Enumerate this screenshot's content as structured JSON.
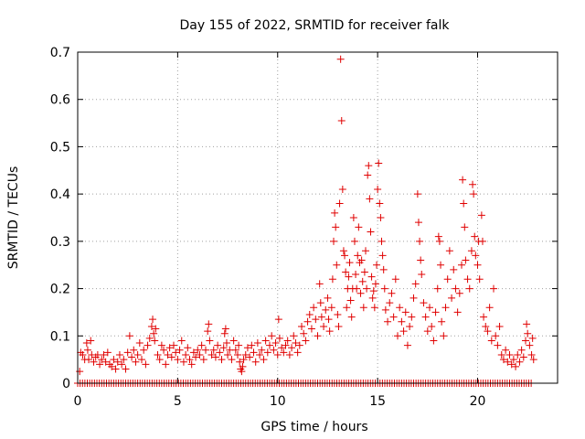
{
  "chart_data": {
    "type": "scatter",
    "title": "Day 155 of 2022, SRMTID for receiver falk",
    "xlabel": "GPS time / hours",
    "ylabel": "SRMTID / TECUs",
    "xlim": [
      0,
      24
    ],
    "ylim": [
      0,
      0.7
    ],
    "x_ticks": [
      "0",
      "5",
      "10",
      "15",
      "20"
    ],
    "x_tick_values": [
      0,
      5,
      10,
      15,
      20
    ],
    "y_ticks": [
      "0",
      "0.1",
      "0.2",
      "0.3",
      "0.4",
      "0.5",
      "0.6",
      "0.7"
    ],
    "y_tick_values": [
      0,
      0.1,
      0.2,
      0.3,
      0.4,
      0.5,
      0.6,
      0.7
    ],
    "grid": true,
    "marker": "+",
    "series_color": "#e00000",
    "series": [
      {
        "name": "SRMTID",
        "points": [
          [
            0.1,
            0.025
          ],
          [
            0.15,
            0.065
          ],
          [
            0.25,
            0.06
          ],
          [
            0.35,
            0.05
          ],
          [
            0.45,
            0.085
          ],
          [
            0.5,
            0.07
          ],
          [
            0.55,
            0.05
          ],
          [
            0.65,
            0.09
          ],
          [
            0.7,
            0.06
          ],
          [
            0.8,
            0.045
          ],
          [
            0.9,
            0.055
          ],
          [
            1.0,
            0.06
          ],
          [
            1.1,
            0.04
          ],
          [
            1.2,
            0.05
          ],
          [
            1.3,
            0.06
          ],
          [
            1.4,
            0.045
          ],
          [
            1.5,
            0.065
          ],
          [
            1.6,
            0.04
          ],
          [
            1.7,
            0.035
          ],
          [
            1.8,
            0.05
          ],
          [
            1.9,
            0.03
          ],
          [
            2.0,
            0.045
          ],
          [
            2.1,
            0.06
          ],
          [
            2.2,
            0.04
          ],
          [
            2.3,
            0.05
          ],
          [
            2.4,
            0.03
          ],
          [
            2.5,
            0.065
          ],
          [
            2.6,
            0.1
          ],
          [
            2.7,
            0.055
          ],
          [
            2.8,
            0.07
          ],
          [
            2.9,
            0.045
          ],
          [
            3.0,
            0.06
          ],
          [
            3.1,
            0.085
          ],
          [
            3.2,
            0.05
          ],
          [
            3.3,
            0.07
          ],
          [
            3.4,
            0.04
          ],
          [
            3.5,
            0.08
          ],
          [
            3.6,
            0.095
          ],
          [
            3.7,
            0.12
          ],
          [
            3.75,
            0.135
          ],
          [
            3.8,
            0.105
          ],
          [
            3.85,
            0.09
          ],
          [
            3.9,
            0.115
          ],
          [
            4.0,
            0.06
          ],
          [
            4.1,
            0.05
          ],
          [
            4.2,
            0.08
          ],
          [
            4.3,
            0.07
          ],
          [
            4.4,
            0.04
          ],
          [
            4.5,
            0.06
          ],
          [
            4.6,
            0.075
          ],
          [
            4.7,
            0.055
          ],
          [
            4.8,
            0.08
          ],
          [
            4.9,
            0.065
          ],
          [
            5.0,
            0.05
          ],
          [
            5.1,
            0.07
          ],
          [
            5.2,
            0.09
          ],
          [
            5.3,
            0.045
          ],
          [
            5.4,
            0.06
          ],
          [
            5.5,
            0.075
          ],
          [
            5.6,
            0.05
          ],
          [
            5.7,
            0.04
          ],
          [
            5.8,
            0.065
          ],
          [
            5.9,
            0.055
          ],
          [
            6.0,
            0.07
          ],
          [
            6.1,
            0.06
          ],
          [
            6.2,
            0.08
          ],
          [
            6.3,
            0.05
          ],
          [
            6.4,
            0.07
          ],
          [
            6.5,
            0.11
          ],
          [
            6.55,
            0.125
          ],
          [
            6.6,
            0.09
          ],
          [
            6.7,
            0.06
          ],
          [
            6.8,
            0.07
          ],
          [
            6.9,
            0.055
          ],
          [
            7.0,
            0.08
          ],
          [
            7.1,
            0.065
          ],
          [
            7.2,
            0.05
          ],
          [
            7.3,
            0.075
          ],
          [
            7.35,
            0.105
          ],
          [
            7.4,
            0.115
          ],
          [
            7.45,
            0.085
          ],
          [
            7.5,
            0.06
          ],
          [
            7.6,
            0.07
          ],
          [
            7.7,
            0.05
          ],
          [
            7.8,
            0.09
          ],
          [
            7.9,
            0.07
          ],
          [
            8.0,
            0.06
          ],
          [
            8.05,
            0.08
          ],
          [
            8.1,
            0.045
          ],
          [
            8.15,
            0.03
          ],
          [
            8.2,
            0.025
          ],
          [
            8.25,
            0.035
          ],
          [
            8.3,
            0.05
          ],
          [
            8.4,
            0.06
          ],
          [
            8.5,
            0.075
          ],
          [
            8.6,
            0.055
          ],
          [
            8.7,
            0.08
          ],
          [
            8.8,
            0.065
          ],
          [
            8.9,
            0.045
          ],
          [
            9.0,
            0.085
          ],
          [
            9.1,
            0.06
          ],
          [
            9.2,
            0.07
          ],
          [
            9.3,
            0.05
          ],
          [
            9.4,
            0.09
          ],
          [
            9.5,
            0.065
          ],
          [
            9.6,
            0.08
          ],
          [
            9.7,
            0.1
          ],
          [
            9.8,
            0.07
          ],
          [
            9.9,
            0.085
          ],
          [
            10.0,
            0.06
          ],
          [
            10.05,
            0.135
          ],
          [
            10.1,
            0.095
          ],
          [
            10.2,
            0.075
          ],
          [
            10.3,
            0.065
          ],
          [
            10.4,
            0.08
          ],
          [
            10.5,
            0.09
          ],
          [
            10.6,
            0.06
          ],
          [
            10.7,
            0.075
          ],
          [
            10.8,
            0.1
          ],
          [
            10.9,
            0.085
          ],
          [
            11.0,
            0.065
          ],
          [
            11.1,
            0.08
          ],
          [
            11.2,
            0.12
          ],
          [
            11.3,
            0.105
          ],
          [
            11.4,
            0.09
          ],
          [
            11.5,
            0.13
          ],
          [
            11.6,
            0.145
          ],
          [
            11.7,
            0.115
          ],
          [
            11.8,
            0.16
          ],
          [
            11.9,
            0.135
          ],
          [
            12.0,
            0.1
          ],
          [
            12.1,
            0.21
          ],
          [
            12.15,
            0.17
          ],
          [
            12.2,
            0.14
          ],
          [
            12.3,
            0.12
          ],
          [
            12.4,
            0.155
          ],
          [
            12.5,
            0.18
          ],
          [
            12.55,
            0.135
          ],
          [
            12.6,
            0.11
          ],
          [
            12.7,
            0.16
          ],
          [
            12.75,
            0.22
          ],
          [
            12.8,
            0.3
          ],
          [
            12.85,
            0.36
          ],
          [
            12.9,
            0.33
          ],
          [
            12.95,
            0.25
          ],
          [
            13.0,
            0.145
          ],
          [
            13.05,
            0.12
          ],
          [
            13.1,
            0.38
          ],
          [
            13.15,
            0.685
          ],
          [
            13.2,
            0.555
          ],
          [
            13.25,
            0.41
          ],
          [
            13.3,
            0.28
          ],
          [
            13.35,
            0.27
          ],
          [
            13.4,
            0.235
          ],
          [
            13.45,
            0.16
          ],
          [
            13.5,
            0.2
          ],
          [
            13.55,
            0.225
          ],
          [
            13.6,
            0.255
          ],
          [
            13.65,
            0.175
          ],
          [
            13.7,
            0.14
          ],
          [
            13.75,
            0.2
          ],
          [
            13.8,
            0.35
          ],
          [
            13.85,
            0.3
          ],
          [
            13.9,
            0.23
          ],
          [
            13.95,
            0.2
          ],
          [
            14.0,
            0.27
          ],
          [
            14.05,
            0.33
          ],
          [
            14.1,
            0.255
          ],
          [
            14.15,
            0.19
          ],
          [
            14.2,
            0.26
          ],
          [
            14.25,
            0.215
          ],
          [
            14.3,
            0.16
          ],
          [
            14.35,
            0.235
          ],
          [
            14.4,
            0.28
          ],
          [
            14.45,
            0.2
          ],
          [
            14.5,
            0.44
          ],
          [
            14.55,
            0.46
          ],
          [
            14.6,
            0.39
          ],
          [
            14.65,
            0.32
          ],
          [
            14.7,
            0.225
          ],
          [
            14.75,
            0.18
          ],
          [
            14.8,
            0.195
          ],
          [
            14.85,
            0.16
          ],
          [
            14.9,
            0.21
          ],
          [
            14.95,
            0.25
          ],
          [
            15.0,
            0.41
          ],
          [
            15.05,
            0.465
          ],
          [
            15.1,
            0.38
          ],
          [
            15.15,
            0.35
          ],
          [
            15.2,
            0.3
          ],
          [
            15.25,
            0.27
          ],
          [
            15.3,
            0.24
          ],
          [
            15.35,
            0.2
          ],
          [
            15.4,
            0.155
          ],
          [
            15.5,
            0.13
          ],
          [
            15.6,
            0.17
          ],
          [
            15.7,
            0.19
          ],
          [
            15.8,
            0.14
          ],
          [
            15.9,
            0.22
          ],
          [
            16.0,
            0.1
          ],
          [
            16.1,
            0.16
          ],
          [
            16.2,
            0.13
          ],
          [
            16.3,
            0.11
          ],
          [
            16.4,
            0.15
          ],
          [
            16.5,
            0.08
          ],
          [
            16.6,
            0.12
          ],
          [
            16.7,
            0.14
          ],
          [
            16.8,
            0.18
          ],
          [
            16.9,
            0.21
          ],
          [
            17.0,
            0.4
          ],
          [
            17.05,
            0.34
          ],
          [
            17.1,
            0.3
          ],
          [
            17.15,
            0.26
          ],
          [
            17.2,
            0.23
          ],
          [
            17.3,
            0.17
          ],
          [
            17.4,
            0.14
          ],
          [
            17.5,
            0.11
          ],
          [
            17.6,
            0.16
          ],
          [
            17.7,
            0.12
          ],
          [
            17.8,
            0.09
          ],
          [
            17.9,
            0.15
          ],
          [
            18.0,
            0.2
          ],
          [
            18.05,
            0.31
          ],
          [
            18.1,
            0.3
          ],
          [
            18.15,
            0.25
          ],
          [
            18.2,
            0.13
          ],
          [
            18.3,
            0.1
          ],
          [
            18.4,
            0.16
          ],
          [
            18.5,
            0.22
          ],
          [
            18.6,
            0.28
          ],
          [
            18.7,
            0.18
          ],
          [
            18.8,
            0.24
          ],
          [
            18.9,
            0.2
          ],
          [
            19.0,
            0.15
          ],
          [
            19.1,
            0.19
          ],
          [
            19.2,
            0.25
          ],
          [
            19.25,
            0.43
          ],
          [
            19.3,
            0.38
          ],
          [
            19.35,
            0.33
          ],
          [
            19.4,
            0.26
          ],
          [
            19.5,
            0.22
          ],
          [
            19.6,
            0.2
          ],
          [
            19.7,
            0.28
          ],
          [
            19.75,
            0.42
          ],
          [
            19.8,
            0.4
          ],
          [
            19.85,
            0.31
          ],
          [
            19.9,
            0.27
          ],
          [
            20.0,
            0.25
          ],
          [
            20.05,
            0.3
          ],
          [
            20.1,
            0.22
          ],
          [
            20.2,
            0.355
          ],
          [
            20.25,
            0.3
          ],
          [
            20.3,
            0.14
          ],
          [
            20.4,
            0.12
          ],
          [
            20.5,
            0.11
          ],
          [
            20.6,
            0.16
          ],
          [
            20.7,
            0.09
          ],
          [
            20.8,
            0.2
          ],
          [
            20.9,
            0.1
          ],
          [
            21.0,
            0.08
          ],
          [
            21.1,
            0.12
          ],
          [
            21.2,
            0.06
          ],
          [
            21.3,
            0.05
          ],
          [
            21.4,
            0.07
          ],
          [
            21.5,
            0.045
          ],
          [
            21.6,
            0.06
          ],
          [
            21.7,
            0.04
          ],
          [
            21.8,
            0.05
          ],
          [
            21.9,
            0.035
          ],
          [
            22.0,
            0.06
          ],
          [
            22.1,
            0.045
          ],
          [
            22.2,
            0.07
          ],
          [
            22.3,
            0.055
          ],
          [
            22.4,
            0.09
          ],
          [
            22.45,
            0.125
          ],
          [
            22.5,
            0.105
          ],
          [
            22.6,
            0.08
          ],
          [
            22.7,
            0.06
          ],
          [
            22.75,
            0.095
          ],
          [
            22.8,
            0.05
          ]
        ]
      }
    ],
    "zero_baseline": {
      "x_start": 0.0,
      "x_end": 22.7,
      "x_step": 0.12,
      "value": 0
    }
  }
}
